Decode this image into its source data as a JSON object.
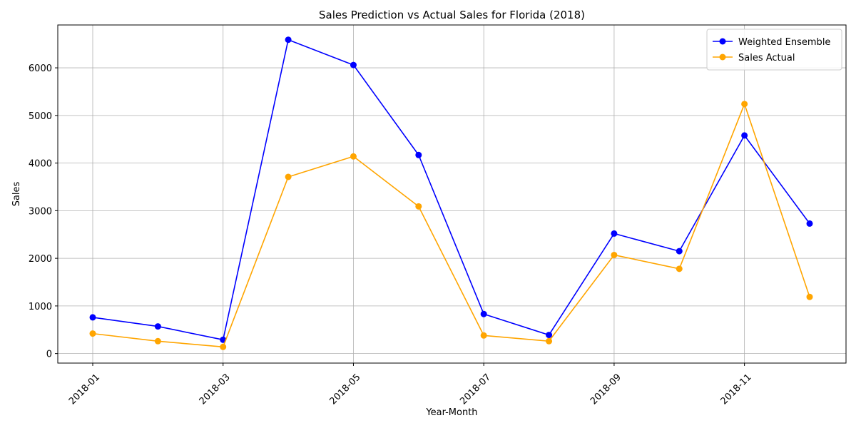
{
  "chart_data": {
    "type": "line",
    "title": "Sales Prediction vs Actual Sales for Florida (2018)",
    "xlabel": "Year-Month",
    "ylabel": "Sales",
    "x": [
      "2018-01",
      "2018-02",
      "2018-03",
      "2018-04",
      "2018-05",
      "2018-06",
      "2018-07",
      "2018-08",
      "2018-09",
      "2018-10",
      "2018-11",
      "2018-12"
    ],
    "x_tick_labels": [
      "2018-01",
      "2018-03",
      "2018-05",
      "2018-07",
      "2018-09",
      "2018-11"
    ],
    "y_ticks": [
      0,
      1000,
      2000,
      3000,
      4000,
      5000,
      6000
    ],
    "ylim": [
      -200,
      6900
    ],
    "grid": true,
    "legend_position": "top-right",
    "series": [
      {
        "name": "Weighted Ensemble",
        "color": "#0000ff",
        "marker": "circle",
        "values": [
          760,
          570,
          290,
          6590,
          6060,
          4170,
          830,
          390,
          2520,
          2150,
          4580,
          2730
        ]
      },
      {
        "name": "Sales Actual",
        "color": "#ffa500",
        "marker": "circle",
        "values": [
          420,
          260,
          140,
          3710,
          4140,
          3090,
          380,
          260,
          2070,
          1780,
          5240,
          1190
        ]
      }
    ]
  }
}
